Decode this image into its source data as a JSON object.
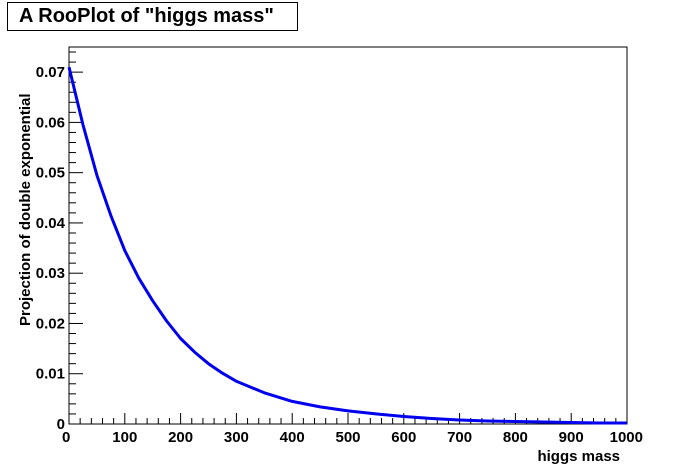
{
  "chart_data": {
    "type": "line",
    "title": "A RooPlot of \"higgs mass\"",
    "xlabel": "higgs mass",
    "ylabel": "Projection of double exponential",
    "xlim": [
      0,
      1000
    ],
    "ylim": [
      0,
      0.075
    ],
    "x_ticks": [
      "0",
      "100",
      "200",
      "300",
      "400",
      "500",
      "600",
      "700",
      "800",
      "900",
      "1000"
    ],
    "y_ticks": [
      "0",
      "0.01",
      "0.02",
      "0.03",
      "0.04",
      "0.05",
      "0.06",
      "0.07"
    ],
    "grid": false,
    "series": [
      {
        "color": "#0000ee",
        "x": [
          0,
          25,
          50,
          75,
          100,
          125,
          150,
          175,
          200,
          225,
          250,
          275,
          300,
          350,
          400,
          450,
          500,
          550,
          600,
          650,
          700,
          750,
          800,
          850,
          900,
          950,
          1000
        ],
        "y": [
          0.071,
          0.0595,
          0.0495,
          0.0415,
          0.0345,
          0.029,
          0.0245,
          0.0205,
          0.017,
          0.0143,
          0.012,
          0.0101,
          0.0085,
          0.0062,
          0.0045,
          0.0034,
          0.0026,
          0.002,
          0.0015,
          0.0011,
          0.0008,
          0.0006,
          0.0005,
          0.0004,
          0.0003,
          0.0002,
          0.0002
        ]
      }
    ]
  }
}
